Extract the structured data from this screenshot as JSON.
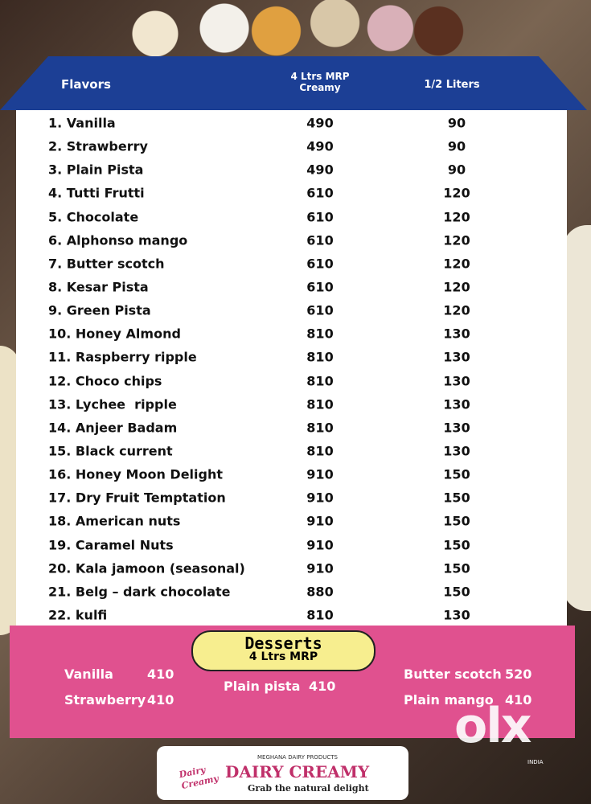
{
  "header": {
    "flavors": "Flavors",
    "col_4l": [
      "4 Ltrs MRP",
      "Creamy"
    ],
    "col_half": "1/2 Liters"
  },
  "table": {
    "rows": [
      [
        "1. Vanilla",
        490,
        90
      ],
      [
        "2. Strawberry",
        490,
        90
      ],
      [
        "3. Plain Pista",
        490,
        90
      ],
      [
        "4. Tutti Frutti",
        610,
        120
      ],
      [
        "5. Chocolate",
        610,
        120
      ],
      [
        "6. Alphonso mango",
        610,
        120
      ],
      [
        "7. Butter scotch",
        610,
        120
      ],
      [
        "8. Kesar Pista",
        610,
        120
      ],
      [
        "9. Green Pista",
        610,
        120
      ],
      [
        "10. Honey Almond",
        810,
        130
      ],
      [
        "11. Raspberry ripple",
        810,
        130
      ],
      [
        "12. Choco chips",
        810,
        130
      ],
      [
        "13. Lychee  ripple",
        810,
        130
      ],
      [
        "14. Anjeer Badam",
        810,
        130
      ],
      [
        "15. Black current",
        810,
        130
      ],
      [
        "16. Honey Moon Delight",
        910,
        150
      ],
      [
        "17. Dry Fruit Temptation",
        910,
        150
      ],
      [
        "18. American nuts",
        910,
        150
      ],
      [
        "19. Caramel Nuts",
        910,
        150
      ],
      [
        "20. Kala jamoon (seasonal)",
        910,
        150
      ],
      [
        "21. Belg – dark chocolate",
        880,
        150
      ],
      [
        "22. kulfi",
        810,
        130
      ]
    ]
  },
  "desserts": {
    "title": "Desserts",
    "subtitle": "4 Ltrs MRP",
    "items": [
      [
        "Vanilla",
        410
      ],
      [
        "Strawberry",
        410
      ],
      [
        "Plain pista",
        410
      ],
      [
        "Butter scotch",
        520
      ],
      [
        "Plain mango",
        410
      ]
    ]
  },
  "brand": {
    "company": "MEGHANA DAIRY PRODUCTS",
    "name": "DAIRY CREAMY",
    "tagline": "Grab the natural delight",
    "logo": "Dairy Creamy"
  },
  "watermark": {
    "logo": "olx",
    "country": "INDIA"
  }
}
